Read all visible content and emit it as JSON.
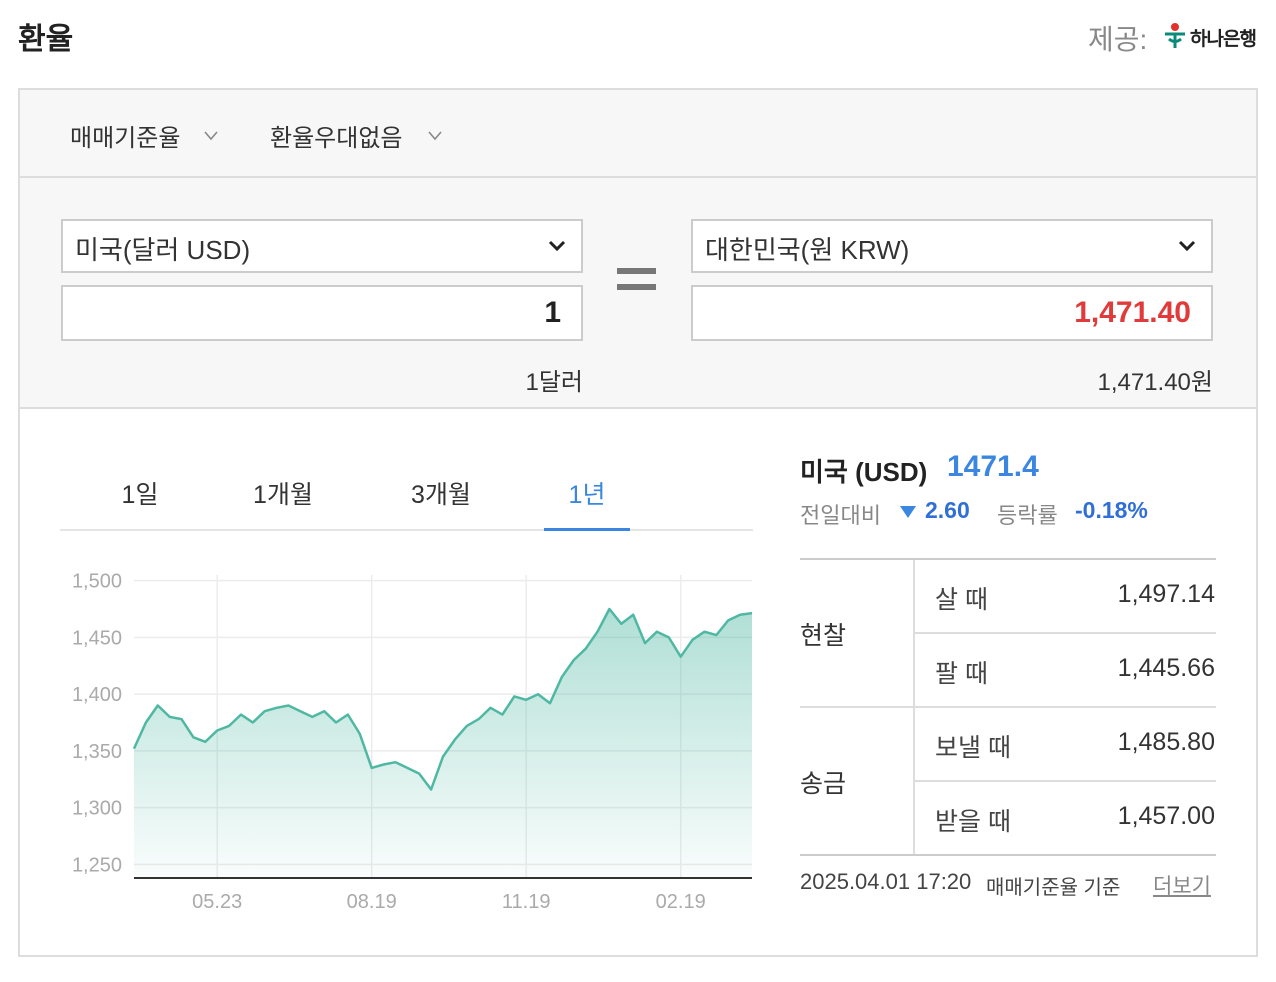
{
  "header": {
    "title": "환율",
    "provider_label": "제공:",
    "provider_name": "하나은행"
  },
  "tabs": [
    "매매기준율",
    "환율우대없음"
  ],
  "converter": {
    "from_currency": "미국(달러 USD)",
    "from_amount": "1",
    "from_text": "1달러",
    "to_currency": "대한민국(원 KRW)",
    "to_amount": "1,471.40",
    "to_text": "1,471.40원"
  },
  "periods": {
    "items": [
      "1일",
      "1개월",
      "3개월",
      "1년"
    ],
    "active": 3
  },
  "summary": {
    "country": "미국 (USD)",
    "rate": "1471.4",
    "change_label": "전일대비",
    "change": "2.60",
    "rate_label": "등락률",
    "rate_change": "-0.18%"
  },
  "rates": {
    "groups": [
      {
        "label": "현찰",
        "rows": [
          {
            "label": "살 때",
            "value": "1,497.14"
          },
          {
            "label": "팔 때",
            "value": "1,445.66"
          }
        ]
      },
      {
        "label": "송금",
        "rows": [
          {
            "label": "보낼 때",
            "value": "1,485.80"
          },
          {
            "label": "받을 때",
            "value": "1,457.00"
          }
        ]
      }
    ]
  },
  "footer": {
    "timestamp": "2025.04.01 17:20",
    "basis": "매매기준율 기준",
    "more": "더보기"
  },
  "chart_data": {
    "type": "area",
    "color": "#4fb8a3",
    "grid": true,
    "categories": [
      null,
      null,
      null,
      null,
      null,
      null,
      null,
      "05.23",
      null,
      null,
      null,
      null,
      null,
      null,
      null,
      null,
      null,
      null,
      null,
      null,
      "08.19",
      null,
      null,
      null,
      null,
      null,
      null,
      null,
      null,
      null,
      null,
      null,
      null,
      "11.19",
      null,
      null,
      null,
      null,
      null,
      null,
      null,
      null,
      null,
      null,
      null,
      null,
      "02.19",
      null,
      null,
      null,
      null,
      null,
      null
    ],
    "values": [
      1352,
      1375,
      1390,
      1380,
      1378,
      1362,
      1358,
      1368,
      1372,
      1382,
      1375,
      1385,
      1388,
      1390,
      1385,
      1380,
      1385,
      1375,
      1382,
      1365,
      1335,
      1338,
      1340,
      1335,
      1330,
      1316,
      1345,
      1360,
      1372,
      1378,
      1388,
      1382,
      1398,
      1395,
      1400,
      1392,
      1415,
      1430,
      1440,
      1455,
      1475,
      1462,
      1470,
      1445,
      1455,
      1450,
      1433,
      1448,
      1455,
      1452,
      1465,
      1470,
      1471.4
    ],
    "ylim": [
      1238,
      1505
    ],
    "yticks": [
      {
        "value": 1250,
        "label": "1,250"
      },
      {
        "value": 1300,
        "label": "1,300"
      },
      {
        "value": 1350,
        "label": "1,350"
      },
      {
        "value": 1400,
        "label": "1,400"
      },
      {
        "value": 1450,
        "label": "1,450"
      },
      {
        "value": 1500,
        "label": "1,500"
      }
    ]
  }
}
